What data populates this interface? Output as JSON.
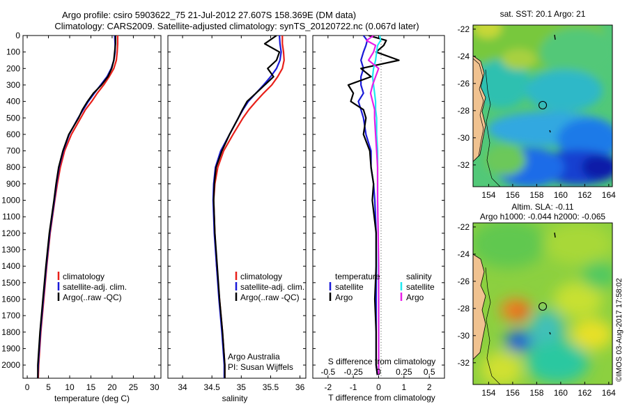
{
  "title": {
    "line1": "Argo profile: csiro 5903622_75 21-Jul-2012 27.607S 158.369E (DM data)",
    "line2": "Climatology: CARS2009. Satellite-adjusted climatology: synTS_20120722.nc (0.067d later)"
  },
  "colors": {
    "clim": "#e8201a",
    "sat": "#1a1ad8",
    "argo": "#000000",
    "sat_s": "#1fe8f0",
    "argo_s": "#e81ee8",
    "land": "#f0c290"
  },
  "chart_data": [
    {
      "type": "line",
      "title": "",
      "xlabel": "temperature (deg C)",
      "ylabel": "",
      "xlim": [
        -1,
        31.5
      ],
      "ylim": [
        2080,
        0
      ],
      "xticks": [
        0,
        5,
        10,
        15,
        20,
        25,
        30
      ],
      "yticks": [
        0,
        100,
        200,
        300,
        400,
        500,
        600,
        700,
        800,
        900,
        1000,
        1100,
        1200,
        1300,
        1400,
        1500,
        1600,
        1700,
        1800,
        1900,
        2000
      ],
      "depth": [
        0,
        50,
        100,
        150,
        200,
        250,
        300,
        350,
        400,
        450,
        500,
        600,
        700,
        800,
        900,
        1000,
        1200,
        1400,
        1600,
        1800,
        2000,
        2080
      ],
      "series": [
        {
          "name": "climatology",
          "values": [
            21.3,
            21.3,
            21.2,
            21.0,
            20.4,
            19.3,
            18.0,
            16.5,
            15.2,
            13.7,
            12.6,
            10.4,
            8.8,
            7.8,
            7.1,
            6.5,
            5.4,
            4.6,
            3.9,
            3.2,
            2.7,
            2.6
          ]
        },
        {
          "name": "satellite-adj. clim.",
          "values": [
            20.6,
            20.7,
            20.7,
            20.4,
            19.8,
            18.8,
            17.3,
            15.8,
            14.4,
            13.2,
            12.0,
            9.9,
            8.5,
            7.5,
            6.9,
            6.4,
            5.3,
            4.5,
            3.8,
            3.1,
            2.6,
            2.5
          ]
        },
        {
          "name": "Argo(..raw -QC)",
          "values": [
            20.8,
            20.8,
            20.6,
            20.4,
            19.9,
            19.0,
            17.5,
            15.6,
            14.2,
            13.0,
            12.1,
            9.8,
            8.4,
            7.4,
            6.8,
            6.3,
            5.2,
            4.4,
            3.7,
            3.0,
            2.5,
            2.5
          ]
        }
      ],
      "legend": [
        "climatology",
        "satellite-adj. clim.",
        "Argo(..raw -QC)"
      ]
    },
    {
      "type": "line",
      "title": "",
      "xlabel": "salinity",
      "xlim": [
        33.75,
        36.1
      ],
      "ylim": [
        2080,
        0
      ],
      "xticks": [
        34,
        34.5,
        35,
        35.5,
        36
      ],
      "depth": [
        0,
        50,
        100,
        150,
        200,
        250,
        300,
        350,
        400,
        450,
        500,
        600,
        700,
        800,
        900,
        1000,
        1200,
        1400,
        1600,
        1800,
        2000,
        2080
      ],
      "series": [
        {
          "name": "climatology",
          "values": [
            35.7,
            35.7,
            35.72,
            35.73,
            35.7,
            35.62,
            35.52,
            35.38,
            35.25,
            35.13,
            35.03,
            34.86,
            34.7,
            34.6,
            34.55,
            34.53,
            34.55,
            34.58,
            34.63,
            34.68,
            34.72,
            34.72
          ]
        },
        {
          "name": "satellite-adj. clim.",
          "values": [
            35.65,
            35.66,
            35.68,
            35.66,
            35.6,
            35.5,
            35.38,
            35.25,
            35.12,
            35.03,
            34.95,
            34.8,
            34.65,
            34.56,
            34.53,
            34.52,
            34.54,
            34.58,
            34.62,
            34.67,
            34.71,
            34.71
          ]
        },
        {
          "name": "Argo(..raw -QC)",
          "values": [
            35.6,
            35.4,
            35.65,
            35.6,
            35.45,
            35.55,
            35.4,
            35.25,
            35.1,
            35.02,
            34.95,
            34.8,
            34.67,
            34.57,
            34.54,
            34.53,
            34.55,
            34.59,
            34.63,
            34.68,
            34.72,
            34.72
          ]
        }
      ],
      "legend": [
        "climatology",
        "satellite-adj. clim.",
        "Argo(..raw -QC)"
      ],
      "annotation": [
        "Argo Australia",
        "PI: Susan Wijffels"
      ]
    },
    {
      "type": "line",
      "xlabel": "T difference from climatology",
      "xlabel_top": "S difference from climatology",
      "xlim": [
        -2.6,
        2.6
      ],
      "ylim": [
        2080,
        0
      ],
      "xticks": [
        -2,
        -1,
        0,
        1,
        2
      ],
      "xticks_s": [
        -0.5,
        -0.25,
        0,
        0.25,
        0.5
      ],
      "xticks_s_labels": [
        "-0.5",
        "-0.25",
        "0",
        "0.25",
        "0.5"
      ],
      "depth": [
        0,
        30,
        60,
        100,
        150,
        200,
        250,
        300,
        350,
        400,
        450,
        500,
        600,
        700,
        800,
        900,
        1000,
        1200,
        1400,
        1600,
        1800,
        2000,
        2060
      ],
      "series": [
        {
          "name": "temperature satellite",
          "values": [
            -0.6,
            -0.45,
            -0.5,
            -0.6,
            -0.7,
            -0.6,
            -0.7,
            -0.7,
            -0.6,
            -0.8,
            -0.7,
            -0.6,
            -0.5,
            -0.3,
            -0.3,
            -0.2,
            -0.15,
            -0.1,
            -0.1,
            -0.1,
            -0.1,
            -0.1,
            -0.05
          ]
        },
        {
          "name": "temperature Argo",
          "values": [
            -0.4,
            0.3,
            0.2,
            -0.1,
            0.8,
            -0.7,
            -0.3,
            -1.2,
            -1.0,
            -1.1,
            -0.6,
            -0.5,
            -0.6,
            -0.35,
            -0.3,
            -0.2,
            -0.25,
            -0.1,
            -0.1,
            -0.15,
            -0.1,
            -0.1,
            -0.05
          ]
        },
        {
          "name": "salinity satellite",
          "values": [
            0.01,
            0.02,
            -0.01,
            -0.02,
            -0.03,
            -0.05,
            -0.06,
            -0.05,
            -0.04,
            -0.03,
            -0.03,
            -0.02,
            -0.02,
            -0.01,
            -0.01,
            -0.01,
            -0.01,
            -0.005,
            -0.005,
            0,
            0,
            0,
            0
          ]
        },
        {
          "name": "salinity Argo",
          "values": [
            -0.05,
            -0.12,
            -0.03,
            -0.05,
            -0.1,
            0.0,
            -0.03,
            -0.06,
            -0.08,
            -0.06,
            -0.04,
            -0.04,
            -0.03,
            -0.02,
            -0.01,
            -0.01,
            -0.01,
            -0.005,
            0,
            0,
            0,
            0,
            0
          ]
        }
      ],
      "legend_headers": [
        "temperature",
        "salinity"
      ],
      "legend": [
        "satellite",
        "Argo",
        "satellite",
        "Argo"
      ]
    },
    {
      "type": "heatmap",
      "title": "sat. SST: 20.1  Argo: 21",
      "xlim": [
        152.7,
        164.3
      ],
      "ylim": [
        -33.6,
        -21.7
      ],
      "xticks": [
        154,
        156,
        158,
        160,
        162,
        164
      ],
      "yticks": [
        -22,
        -24,
        -26,
        -28,
        -30,
        -32
      ],
      "float_position": [
        158.37,
        -27.61
      ]
    },
    {
      "type": "heatmap",
      "title": "Altim. SLA: -0.11",
      "subtitle": "Argo h1000: -0.044 h2000: -0.065",
      "xlim": [
        152.7,
        164.3
      ],
      "ylim": [
        -33.6,
        -21.7
      ],
      "xticks": [
        154,
        156,
        158,
        160,
        162,
        164
      ],
      "yticks": [
        -22,
        -24,
        -26,
        -28,
        -30,
        -32
      ],
      "float_position": [
        158.37,
        -27.61
      ]
    }
  ],
  "stamp": "©IMOS 03-Aug-2017 17:58:02"
}
